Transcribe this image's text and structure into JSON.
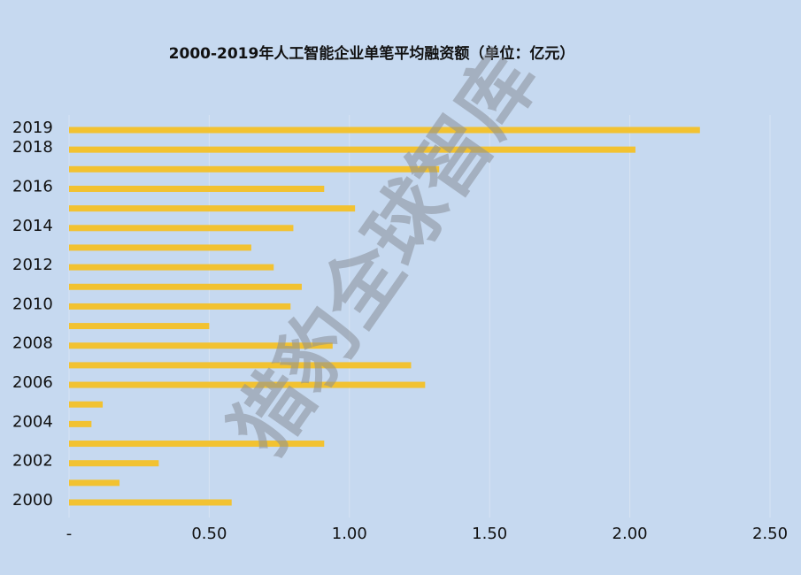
{
  "chart_data": {
    "type": "barh",
    "title": "2000-2019年人工智能企业单笔平均融资额（单位：亿元）",
    "watermark": "猎豹全球智库",
    "categories": [
      "2000",
      null,
      "2002",
      null,
      "2004",
      null,
      "2006",
      null,
      "2008",
      null,
      "2010",
      null,
      "2012",
      null,
      "2014",
      null,
      "2016",
      null,
      "2018",
      "2019"
    ],
    "values": [
      0.58,
      0.18,
      0.32,
      0.91,
      0.08,
      0.12,
      1.27,
      1.22,
      0.94,
      0.5,
      0.79,
      0.83,
      0.73,
      0.65,
      0.8,
      1.02,
      0.91,
      1.32,
      2.02,
      2.25
    ],
    "color": "#f2c231",
    "xlim": [
      0,
      2.5
    ],
    "xticks": [
      {
        "value": 0,
        "label": "-"
      },
      {
        "value": 0.5,
        "label": "0.50"
      },
      {
        "value": 1,
        "label": "1.00"
      },
      {
        "value": 1.5,
        "label": "1.50"
      },
      {
        "value": 2,
        "label": "2.00"
      },
      {
        "value": 2.5,
        "label": "2.50"
      }
    ],
    "grid": true
  }
}
